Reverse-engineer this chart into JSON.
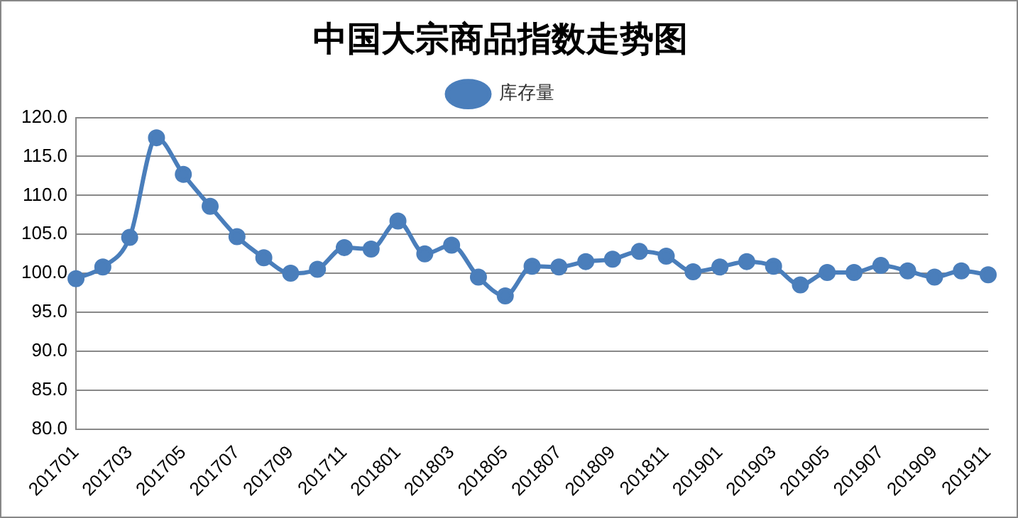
{
  "chart_data": {
    "type": "line",
    "title": "中国大宗商品指数走势图",
    "categories": [
      "201701",
      null,
      "201703",
      null,
      "201705",
      null,
      "201707",
      null,
      "201709",
      null,
      "201711",
      null,
      "201801",
      null,
      "201803",
      null,
      "201805",
      null,
      "201807",
      null,
      "201809",
      null,
      "201811",
      null,
      "201901",
      null,
      "201903",
      null,
      "201905",
      null,
      "201907",
      null,
      "201909",
      null,
      "201911"
    ],
    "series": [
      {
        "name": "库存量",
        "color": "#4a7ebb",
        "values": [
          99.3,
          100.8,
          104.6,
          117.4,
          112.7,
          108.6,
          104.7,
          102.0,
          100.0,
          100.5,
          103.3,
          103.1,
          106.7,
          102.5,
          103.6,
          99.5,
          97.1,
          100.9,
          100.8,
          101.5,
          101.8,
          102.8,
          102.2,
          100.2,
          100.8,
          101.5,
          100.9,
          98.5,
          100.1,
          100.1,
          101.0,
          100.3,
          99.5,
          100.3,
          99.8
        ]
      }
    ],
    "ylim": [
      80,
      120
    ],
    "yticks": [
      {
        "value": 80,
        "label": "80.0"
      },
      {
        "value": 85,
        "label": "85.0"
      },
      {
        "value": 90,
        "label": "90.0"
      },
      {
        "value": 95,
        "label": "95.0"
      },
      {
        "value": 100,
        "label": "100.0"
      },
      {
        "value": 105,
        "label": "105.0"
      },
      {
        "value": 110,
        "label": "110.0"
      },
      {
        "value": 115,
        "label": "115.0"
      },
      {
        "value": 120,
        "label": "120.0"
      }
    ],
    "grid": "y",
    "legend": "top",
    "marker": "circle",
    "line_style": "solid"
  }
}
